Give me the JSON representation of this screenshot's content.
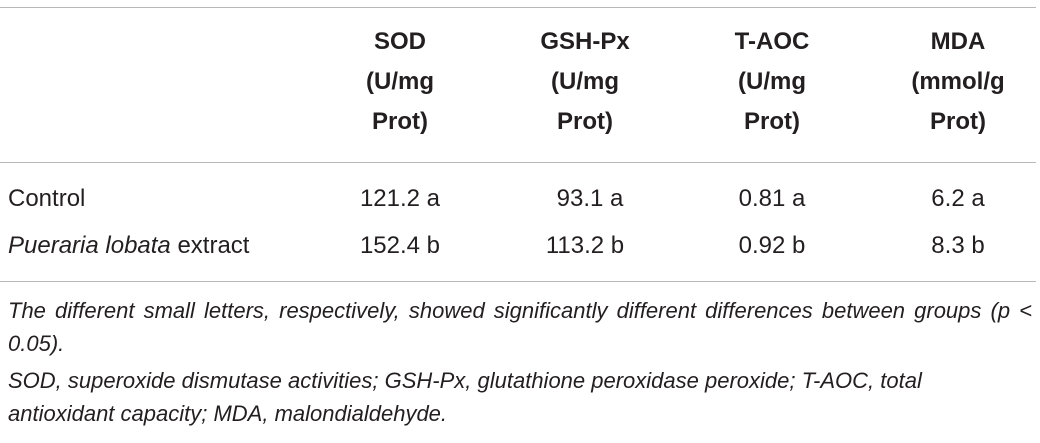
{
  "table": {
    "columns": [
      {
        "name": "SOD",
        "unit_line1": "(U/mg",
        "unit_line2": "Prot)"
      },
      {
        "name": "GSH-Px",
        "unit_line1": "(U/mg",
        "unit_line2": "Prot)"
      },
      {
        "name": "T-AOC",
        "unit_line1": "(U/mg",
        "unit_line2": "Prot)"
      },
      {
        "name": "MDA",
        "unit_line1": "(mmol/g",
        "unit_line2": "Prot)"
      }
    ],
    "rows": [
      {
        "label": "Control",
        "values": [
          "121.2 a",
          "93.1 a",
          "0.81 a",
          "6.2 a"
        ]
      },
      {
        "label_italic": "Pueraria lobata",
        "label_rest": " extract",
        "values": [
          "152.4 b",
          "113.2 b",
          "0.92 b",
          "8.3 b"
        ]
      }
    ]
  },
  "footnotes": {
    "significance": "The different small letters, respectively, showed significantly different differences between groups (p < 0.05).",
    "abbreviations": "SOD, superoxide dismutase activities; GSH-Px, glutathione peroxidase peroxide; T-AOC, total antioxidant capacity; MDA, malondialdehyde."
  }
}
